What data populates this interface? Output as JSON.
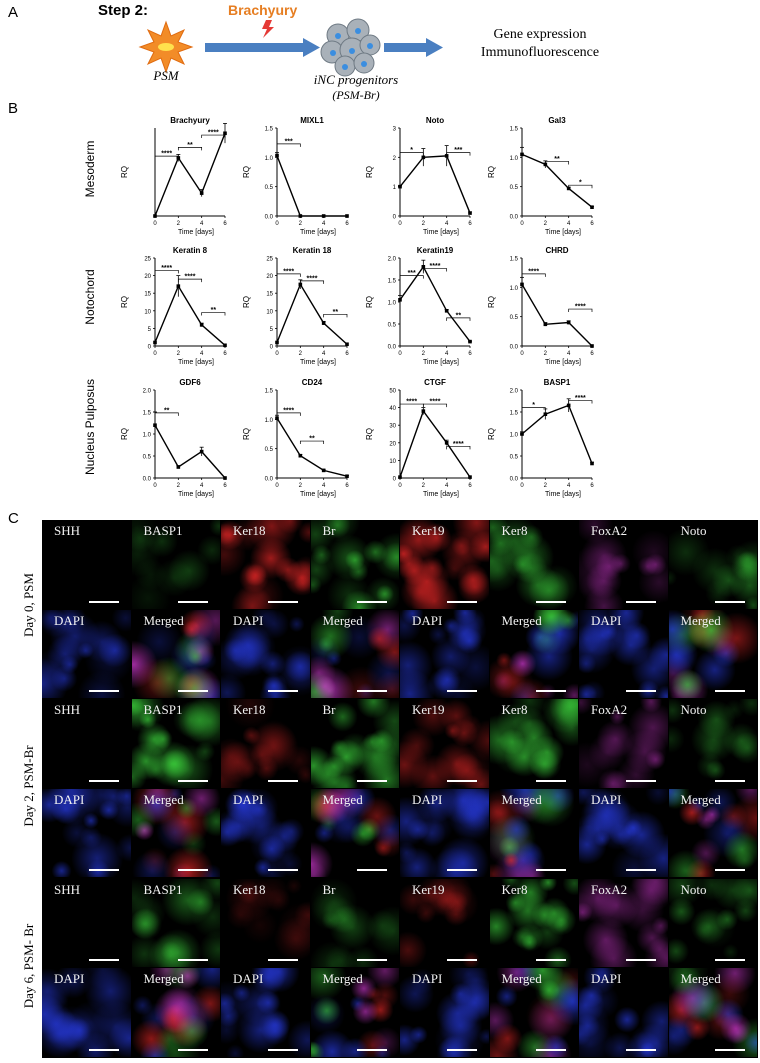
{
  "panel_a": {
    "letter": "A",
    "step_title": "Step 2:",
    "stimulus": "Brachyury",
    "source_label": "PSM",
    "progenitor_label_1": "iNC progenitors",
    "progenitor_label_2": "(PSM-Br)",
    "output_line_1": "Gene expression",
    "output_line_2": "Immunofluorescence",
    "colors": {
      "arrow": "#4a7fc1",
      "star": "#f28c28",
      "lightning": "#e53935",
      "cell": "#9aa4ae"
    }
  },
  "panel_b": {
    "letter": "B",
    "row_labels": [
      "Mesoderm",
      "Notochord",
      "Nucleus Pulposus"
    ]
  },
  "chart_data": [
    {
      "type": "line",
      "title": "Brachyury",
      "x": [
        0,
        2,
        4,
        6
      ],
      "values": [
        0,
        165,
        65,
        235
      ],
      "errors": [
        0,
        10,
        10,
        28
      ],
      "ylim": [
        0,
        250
      ],
      "yticks": [],
      "xlabel": "Time [days]",
      "ylabel": "RQ",
      "sig": [
        {
          "from": 0,
          "to": 2,
          "label": "****",
          "level": 0.68
        },
        {
          "from": 2,
          "to": 4,
          "label": "**",
          "level": 0.78
        },
        {
          "from": 4,
          "to": 6,
          "label": "****",
          "level": 0.92
        }
      ]
    },
    {
      "type": "line",
      "title": "MIXL1",
      "x": [
        0,
        2,
        4,
        6
      ],
      "values": [
        1.03,
        0.0,
        0.0,
        0.0
      ],
      "errors": [
        0.05,
        0,
        0,
        0
      ],
      "ylim": [
        0,
        1.5
      ],
      "yticks": [
        "0.0",
        "0.5",
        "1.0",
        "1.5"
      ],
      "xlabel": "Time [days]",
      "ylabel": "RQ",
      "sig": [
        {
          "from": 0,
          "to": 2,
          "label": "***",
          "level": 0.82
        }
      ]
    },
    {
      "type": "line",
      "title": "Noto",
      "x": [
        0,
        2,
        4,
        6
      ],
      "values": [
        1.0,
        2.0,
        2.05,
        0.1
      ],
      "errors": [
        0.03,
        0.3,
        0.35,
        0.04
      ],
      "ylim": [
        0,
        3
      ],
      "yticks": [
        "0",
        "1",
        "2",
        "3"
      ],
      "xlabel": "Time [days]",
      "ylabel": "RQ",
      "sig": [
        {
          "from": 0,
          "to": 2,
          "label": "*",
          "level": 0.72
        },
        {
          "from": 4,
          "to": 6,
          "label": "***",
          "level": 0.72
        }
      ]
    },
    {
      "type": "line",
      "title": "Gal3",
      "x": [
        0,
        2,
        4,
        6
      ],
      "values": [
        1.05,
        0.88,
        0.47,
        0.15
      ],
      "errors": [
        0.12,
        0.06,
        0.02,
        0.01
      ],
      "ylim": [
        0,
        1.5
      ],
      "yticks": [
        "0.0",
        "0.5",
        "1.0",
        "1.5"
      ],
      "xlabel": "Time [days]",
      "ylabel": "RQ",
      "sig": [
        {
          "from": 2,
          "to": 4,
          "label": "**",
          "level": 0.62
        },
        {
          "from": 4,
          "to": 6,
          "label": "*",
          "level": 0.35
        }
      ]
    },
    {
      "type": "line",
      "title": "Keratin 8",
      "x": [
        0,
        2,
        4,
        6
      ],
      "values": [
        1,
        17,
        6,
        0.2
      ],
      "errors": [
        0,
        3,
        0.5,
        0
      ],
      "ylim": [
        0,
        25
      ],
      "yticks": [
        "0",
        "5",
        "10",
        "15",
        "20",
        "25"
      ],
      "xlabel": "Time [days]",
      "ylabel": "RQ",
      "sig": [
        {
          "from": 0,
          "to": 2,
          "label": "****",
          "level": 0.86
        },
        {
          "from": 2,
          "to": 4,
          "label": "****",
          "level": 0.76
        },
        {
          "from": 4,
          "to": 6,
          "label": "**",
          "level": 0.38
        }
      ]
    },
    {
      "type": "line",
      "title": "Keratin 18",
      "x": [
        0,
        2,
        4,
        6
      ],
      "values": [
        1,
        17.5,
        6.5,
        0.5
      ],
      "errors": [
        0,
        1.3,
        0.5,
        0
      ],
      "ylim": [
        0,
        25
      ],
      "yticks": [
        "0",
        "5",
        "10",
        "15",
        "20",
        "25"
      ],
      "xlabel": "Time [days]",
      "ylabel": "RQ",
      "sig": [
        {
          "from": 0,
          "to": 2,
          "label": "****",
          "level": 0.82
        },
        {
          "from": 2,
          "to": 4,
          "label": "****",
          "level": 0.74
        },
        {
          "from": 4,
          "to": 6,
          "label": "**",
          "level": 0.36
        }
      ]
    },
    {
      "type": "line",
      "title": "Keratin19",
      "x": [
        0,
        2,
        4,
        6
      ],
      "values": [
        1.05,
        1.8,
        0.8,
        0.1
      ],
      "errors": [
        0.1,
        0.15,
        0.03,
        0.01
      ],
      "ylim": [
        0,
        2.0
      ],
      "yticks": [
        "0.0",
        "0.5",
        "1.0",
        "1.5",
        "2.0"
      ],
      "xlabel": "Time [days]",
      "ylabel": "RQ",
      "sig": [
        {
          "from": 0,
          "to": 2,
          "label": "***",
          "level": 0.8
        },
        {
          "from": 2,
          "to": 4,
          "label": "****",
          "level": 0.88
        },
        {
          "from": 4,
          "to": 6,
          "label": "**",
          "level": 0.32
        }
      ]
    },
    {
      "type": "line",
      "title": "CHRD",
      "x": [
        0,
        2,
        4,
        6
      ],
      "values": [
        1.05,
        0.37,
        0.4,
        0.0
      ],
      "errors": [
        0.12,
        0.03,
        0.03,
        0
      ],
      "ylim": [
        0,
        1.5
      ],
      "yticks": [
        "0.0",
        "0.5",
        "1.0",
        "1.5"
      ],
      "xlabel": "Time [days]",
      "ylabel": "RQ",
      "sig": [
        {
          "from": 0,
          "to": 2,
          "label": "****",
          "level": 0.82
        },
        {
          "from": 4,
          "to": 6,
          "label": "****",
          "level": 0.42
        }
      ]
    },
    {
      "type": "line",
      "title": "GDF6",
      "x": [
        0,
        2,
        4,
        6
      ],
      "values": [
        1.2,
        0.25,
        0.6,
        0.0
      ],
      "errors": [
        0.3,
        0.03,
        0.1,
        0
      ],
      "ylim": [
        0,
        2.0
      ],
      "yticks": [
        "0.0",
        "0.5",
        "1.0",
        "1.5",
        "2.0"
      ],
      "xlabel": "Time [days]",
      "ylabel": "RQ",
      "sig": [
        {
          "from": 0,
          "to": 2,
          "label": "**",
          "level": 0.74
        }
      ]
    },
    {
      "type": "line",
      "title": "CD24",
      "x": [
        0,
        2,
        4,
        6
      ],
      "values": [
        1.02,
        0.38,
        0.13,
        0.03
      ],
      "errors": [
        0.05,
        0.02,
        0.01,
        0.01
      ],
      "ylim": [
        0,
        1.5
      ],
      "yticks": [
        "0.0",
        "0.5",
        "1.0",
        "1.5"
      ],
      "xlabel": "Time [days]",
      "ylabel": "RQ",
      "sig": [
        {
          "from": 0,
          "to": 2,
          "label": "****",
          "level": 0.74
        },
        {
          "from": 2,
          "to": 4,
          "label": "**",
          "level": 0.42
        }
      ]
    },
    {
      "type": "line",
      "title": "CTGF",
      "x": [
        0,
        2,
        4,
        6
      ],
      "values": [
        0.5,
        38,
        20,
        0.5
      ],
      "errors": [
        0,
        2,
        1.5,
        0
      ],
      "ylim": [
        0,
        50
      ],
      "yticks": [
        "0",
        "10",
        "20",
        "30",
        "40",
        "50"
      ],
      "xlabel": "Time [days]",
      "ylabel": "RQ",
      "sig": [
        {
          "from": 0,
          "to": 2,
          "label": "****",
          "level": 0.84
        },
        {
          "from": 2,
          "to": 4,
          "label": "****",
          "level": 0.84
        },
        {
          "from": 4,
          "to": 6,
          "label": "****",
          "level": 0.36
        }
      ]
    },
    {
      "type": "line",
      "title": "BASP1",
      "x": [
        0,
        2,
        4,
        6
      ],
      "values": [
        1.0,
        1.45,
        1.65,
        0.33
      ],
      "errors": [
        0.05,
        0.12,
        0.15,
        0.03
      ],
      "ylim": [
        0,
        2.0
      ],
      "yticks": [
        "0.0",
        "0.5",
        "1.0",
        "1.5",
        "2.0"
      ],
      "xlabel": "Time [days]",
      "ylabel": "RQ",
      "sig": [
        {
          "from": 0,
          "to": 2,
          "label": "*",
          "level": 0.8
        },
        {
          "from": 4,
          "to": 6,
          "label": "****",
          "level": 0.88
        }
      ]
    }
  ],
  "panel_c": {
    "letter": "C",
    "row_labels": [
      "Day 0, PSM",
      "Day 2, PSM-Br",
      "Day 6, PSM- Br"
    ],
    "groups": [
      {
        "top": [
          "SHH",
          "BASP1"
        ],
        "bottom": [
          "DAPI",
          "Merged"
        ]
      },
      {
        "top": [
          "Ker18",
          "Br"
        ],
        "bottom": [
          "DAPI",
          "Merged"
        ]
      },
      {
        "top": [
          "Ker19",
          "Ker8"
        ],
        "bottom": [
          "DAPI",
          "Merged"
        ]
      },
      {
        "top": [
          "FoxA2",
          "Noto"
        ],
        "bottom": [
          "DAPI",
          "Merged"
        ]
      }
    ]
  }
}
